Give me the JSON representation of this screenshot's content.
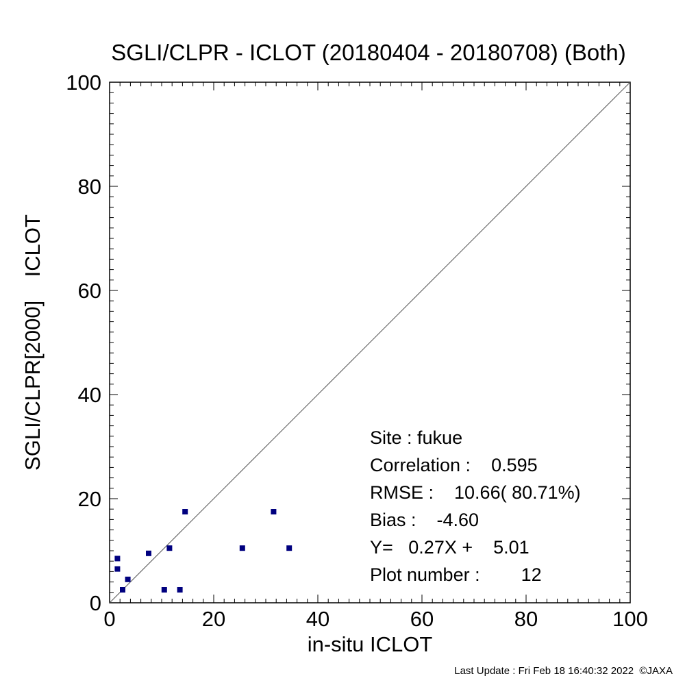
{
  "chart_data": {
    "type": "scatter",
    "title": "SGLI/CLPR - ICLOT (20180404 - 20180708) (Both)",
    "xlabel": "in-situ ICLOT",
    "ylabel": "SGLI/CLPR[2000]    ICLOT",
    "xlim": [
      0,
      100
    ],
    "ylim": [
      0,
      100
    ],
    "xticks": [
      "0",
      "20",
      "40",
      "60",
      "80",
      "100"
    ],
    "yticks": [
      "0",
      "20",
      "40",
      "60",
      "80",
      "100"
    ],
    "grid": false,
    "one_to_one_line": true,
    "marker_color": "#00007f",
    "points": [
      {
        "x": 1.5,
        "y": 8.5
      },
      {
        "x": 1.5,
        "y": 6.5
      },
      {
        "x": 2.5,
        "y": 2.5
      },
      {
        "x": 3.5,
        "y": 4.5
      },
      {
        "x": 7.5,
        "y": 9.5
      },
      {
        "x": 10.5,
        "y": 2.5
      },
      {
        "x": 11.5,
        "y": 10.5
      },
      {
        "x": 13.5,
        "y": 2.5
      },
      {
        "x": 14.5,
        "y": 17.5
      },
      {
        "x": 25.5,
        "y": 10.5
      },
      {
        "x": 31.5,
        "y": 17.5
      },
      {
        "x": 34.5,
        "y": 10.5
      }
    ],
    "stats": {
      "site": "Site : fukue",
      "correlation": "Correlation :    0.595",
      "rmse": "RMSE :    10.66( 80.71%)",
      "bias": "Bias :    -4.60",
      "regression": "Y=   0.27X +    5.01",
      "plot_number": "Plot number :        12"
    }
  },
  "footer": "Last Update : Fri Feb 18 16:40:32 2022  ©JAXA"
}
